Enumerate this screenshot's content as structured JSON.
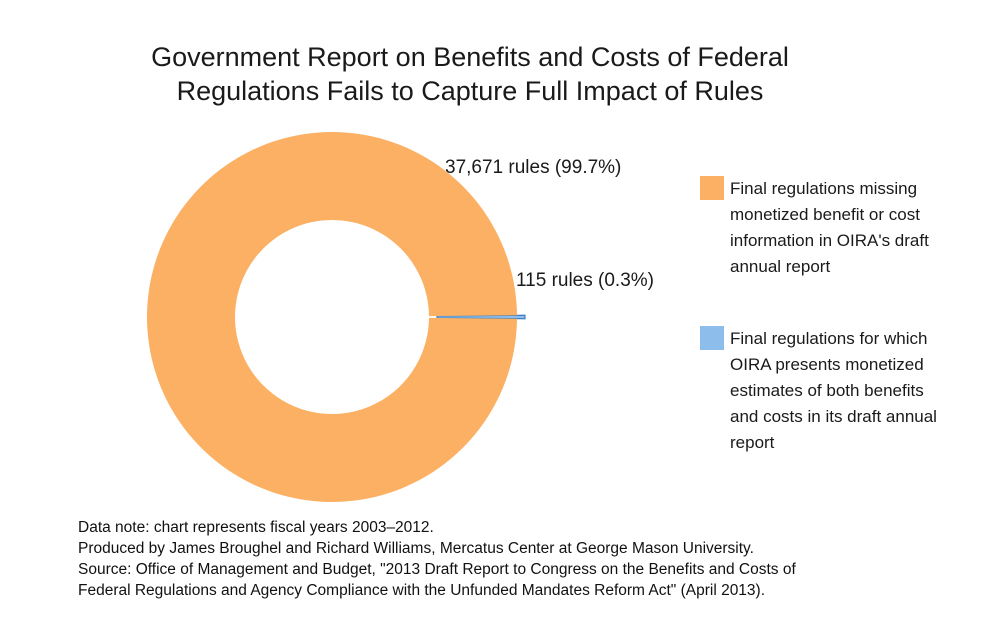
{
  "chart_data": {
    "type": "donut",
    "title_lines": [
      "Government Report on Benefits and Costs of Federal",
      "Regulations Fails to Capture Full Impact of Rules"
    ],
    "series": [
      {
        "label": "37,671 rules (99.7%)",
        "rules": 37671,
        "percent": 99.7,
        "color": "#FBB064",
        "legend_lines": [
          "Final regulations missing",
          "monetized benefit or cost",
          "information in OIRA's draft",
          "annual report"
        ]
      },
      {
        "label": "115 rules (0.3%)",
        "rules": 115,
        "percent": 0.3,
        "color": "#8DBDEB",
        "legend_lines": [
          "Final regulations for which",
          "OIRA presents monetized",
          "estimates of both benefits",
          "and costs in its draft annual",
          "report"
        ]
      }
    ]
  },
  "notes": [
    "Data note: chart represents fiscal years 2003–2012.",
    "Produced by James Broughel and Richard Williams, Mercatus Center at George Mason University.",
    "Source: Office of Management and Budget, \"2013 Draft Report to Congress on the Benefits and Costs of",
    "Federal Regulations and Agency Compliance with the Unfunded Mandates Reform Act\" (April 2013)."
  ]
}
